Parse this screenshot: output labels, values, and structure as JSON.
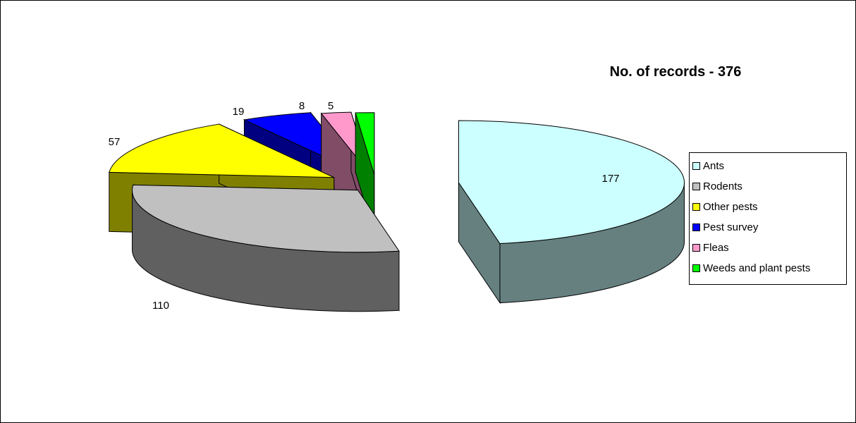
{
  "chart_data": {
    "type": "pie",
    "title": "No. of records - 376",
    "categories": [
      "Ants",
      "Rodents",
      "Other pests",
      "Pest survey",
      "Fleas",
      "Weeds and plant pests"
    ],
    "values": [
      177,
      110,
      57,
      19,
      8,
      5
    ],
    "labels": [
      "177",
      "110",
      "57",
      "19",
      "8",
      "5"
    ],
    "colors": [
      "#CCFFFF",
      "#C0C0C0",
      "#FFFF00",
      "#0000FF",
      "#FF99CC",
      "#00FF00"
    ],
    "side_colors": [
      "#668080",
      "#606060",
      "#808000",
      "#000080",
      "#804C66",
      "#008000"
    ],
    "exploded": true,
    "three_d": true,
    "legend": {
      "position": "right",
      "items": [
        "Ants",
        "Rodents",
        "Other pests",
        "Pest survey",
        "Fleas",
        "Weeds and plant pests"
      ]
    }
  }
}
